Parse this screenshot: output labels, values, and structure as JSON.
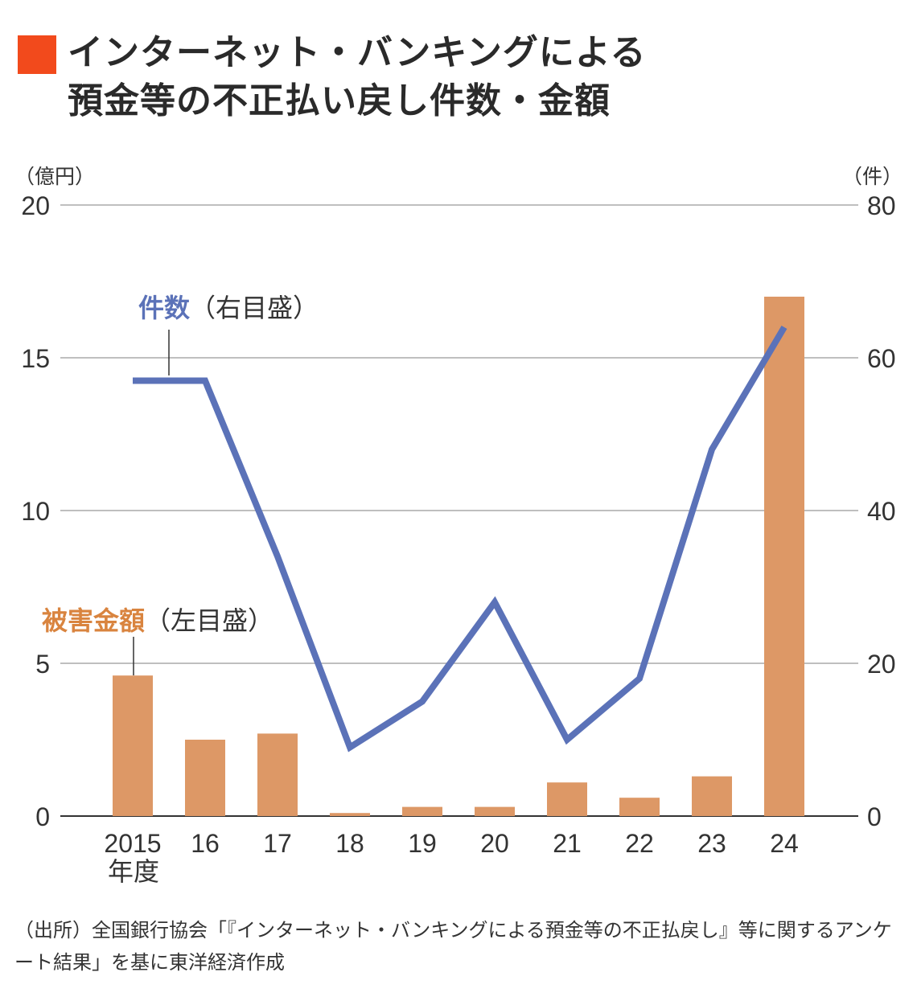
{
  "title": {
    "line1": "インターネット・バンキングによる",
    "line2": "預金等の不正払い戻し件数・金額",
    "accent_color": "#f24a1c"
  },
  "source": "（出所）全国銀行協会「『インターネット・バンキングによる預金等の不正払戻し』等に関するアンケート結果」を基に東洋経済作成",
  "chart_data": {
    "type": "bar+line",
    "categories": [
      "2015",
      "16",
      "17",
      "18",
      "19",
      "20",
      "21",
      "22",
      "23",
      "24"
    ],
    "x_unit_label": "年度",
    "left_axis": {
      "unit": "（億円）",
      "ylim": [
        0,
        20
      ],
      "ticks": [
        "0",
        "5",
        "10",
        "15",
        "20"
      ]
    },
    "right_axis": {
      "unit": "（件）",
      "ylim": [
        0,
        80
      ],
      "ticks": [
        "0",
        "20",
        "40",
        "60",
        "80"
      ]
    },
    "grid": true,
    "series": [
      {
        "name": "被害金額",
        "annotation_note": "（左目盛）",
        "type": "bar",
        "axis": "left",
        "color": "#dd9866",
        "label_color": "#d9843f",
        "values": [
          4.6,
          2.5,
          2.7,
          0.1,
          0.3,
          0.3,
          1.1,
          0.6,
          1.3,
          17.0
        ]
      },
      {
        "name": "件数",
        "annotation_note": "（右目盛）",
        "type": "line",
        "axis": "right",
        "color": "#5b72b8",
        "label_color": "#5b72b8",
        "values": [
          57,
          57,
          34,
          9,
          15,
          28,
          10,
          18,
          48,
          64
        ]
      }
    ]
  }
}
